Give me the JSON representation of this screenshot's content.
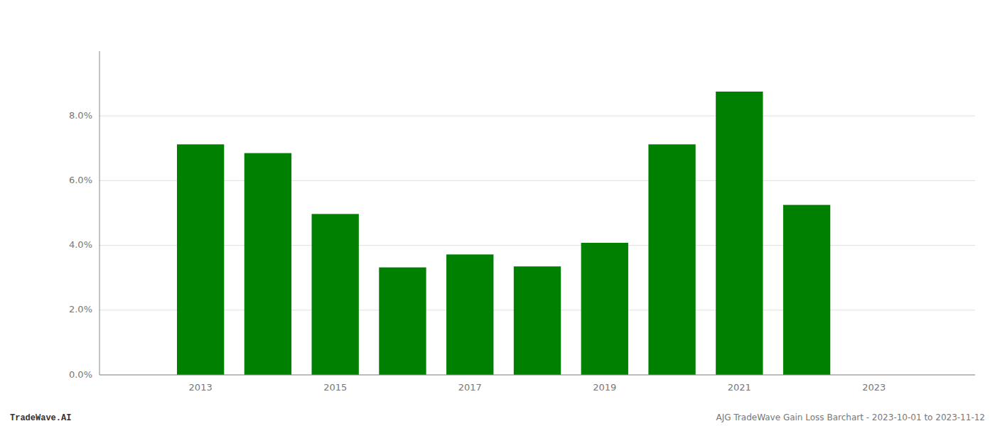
{
  "chart_data": {
    "type": "bar",
    "x": [
      2013,
      2014,
      2015,
      2016,
      2017,
      2018,
      2019,
      2020,
      2021,
      2022
    ],
    "values": [
      0.0712,
      0.0685,
      0.0497,
      0.0332,
      0.0372,
      0.0335,
      0.0408,
      0.0712,
      0.0875,
      0.0525
    ],
    "color": "#008000",
    "xlim": [
      2011.5,
      2024.5
    ],
    "xticks": [
      2013,
      2015,
      2017,
      2019,
      2021,
      2023
    ],
    "ylim": [
      0,
      0.1
    ],
    "yticks": [
      {
        "value": 0.0,
        "label": "0.0%"
      },
      {
        "value": 0.02,
        "label": "2.0%"
      },
      {
        "value": 0.04,
        "label": "4.0%"
      },
      {
        "value": 0.06,
        "label": "6.0%"
      },
      {
        "value": 0.08,
        "label": "8.0%"
      }
    ],
    "grid": true,
    "annotations": [
      "TradeWave.AI",
      "AJG TradeWave Gain Loss Barchart - 2023-10-01 to 2023-11-12"
    ]
  }
}
